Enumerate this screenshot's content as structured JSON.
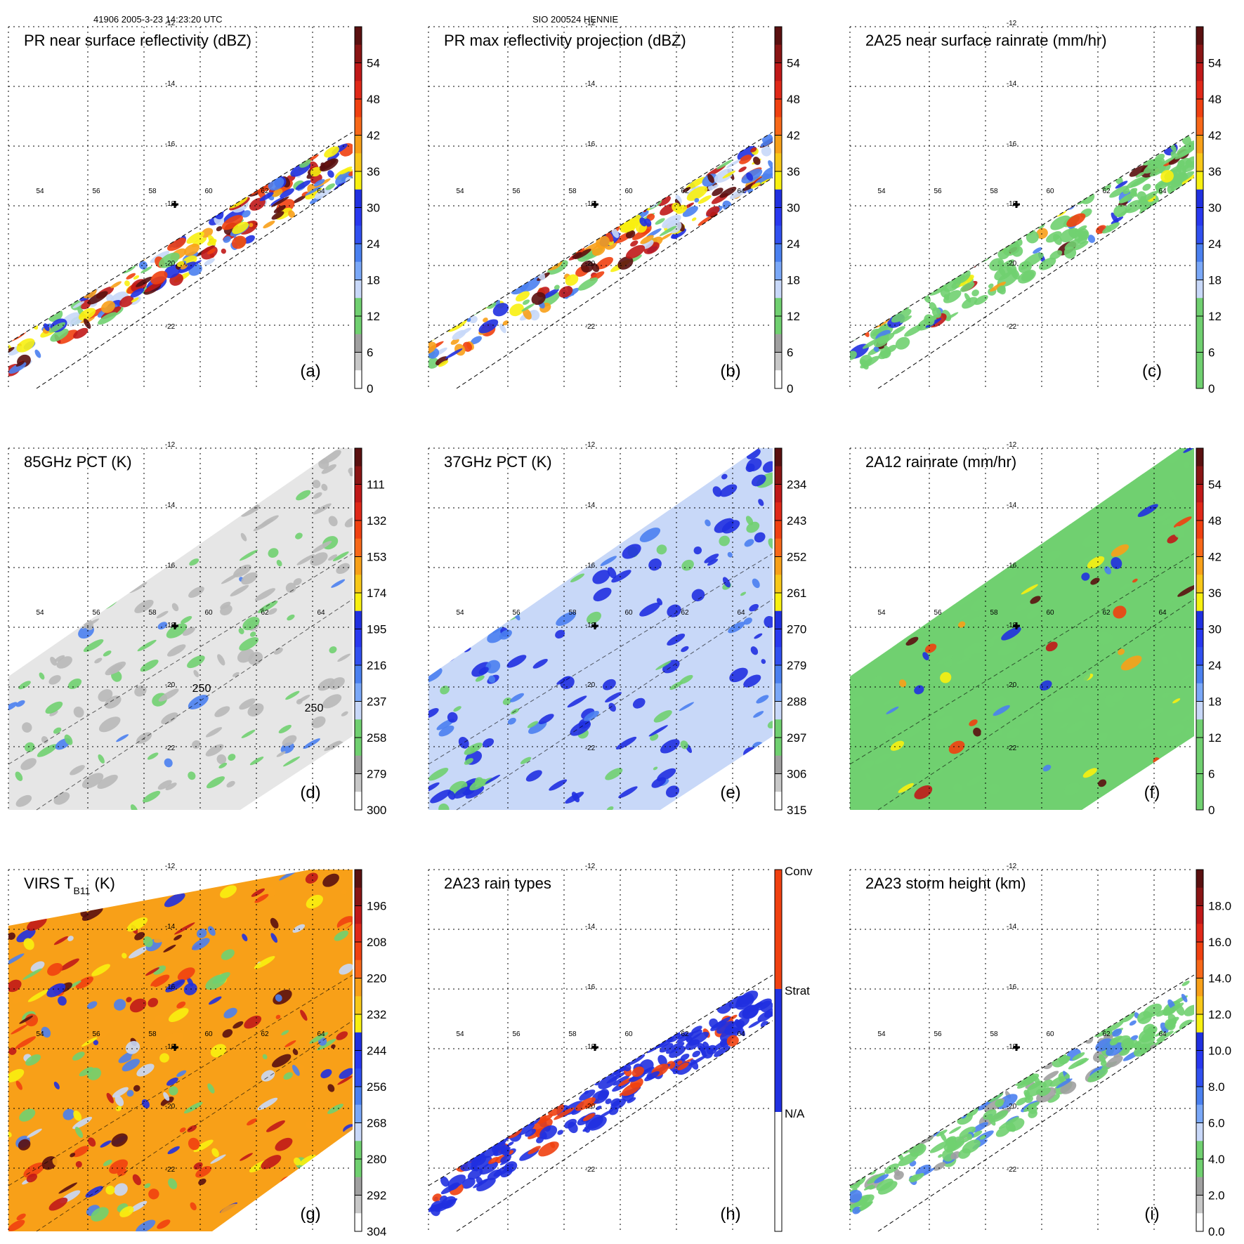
{
  "header": {
    "left": "41906 2005-3-23 14:23:20 UTC",
    "center": "SIO 200524 HENNIE"
  },
  "grid": {
    "lon_labels": [
      "54",
      "56",
      "58",
      "60",
      "62",
      "64"
    ],
    "lat_labels": [
      "-12",
      "-14",
      "-16",
      "-18",
      "-20",
      "-22"
    ]
  },
  "chart_data": [
    {
      "id": "a",
      "type": "heatmap",
      "title": "PR near surface reflectivity (dBZ)",
      "panel_label": "(a)",
      "swath": "PR",
      "ticks": [
        "54",
        "48",
        "42",
        "36",
        "30",
        "24",
        "18",
        "12",
        "6",
        "0"
      ],
      "colors": [
        "#5a1010",
        "#c01818",
        "#f04010",
        "#f8a018",
        "#f8f010",
        "#2030e0",
        "#4a80f0",
        "#c8d8f8",
        "#70d070",
        "#a0a0a0",
        "#d8d8d8",
        "#ffffff"
      ]
    },
    {
      "id": "b",
      "type": "heatmap",
      "title": "PR max reflectivity projection (dBZ)",
      "panel_label": "(b)",
      "swath": "PR",
      "ticks": [
        "54",
        "48",
        "42",
        "36",
        "30",
        "24",
        "18",
        "12",
        "6",
        "0"
      ],
      "colors": [
        "#5a1010",
        "#c01818",
        "#f04010",
        "#f8a018",
        "#f8f010",
        "#2030e0",
        "#4a80f0",
        "#c8d8f8",
        "#70d070",
        "#a0a0a0",
        "#d8d8d8",
        "#ffffff"
      ]
    },
    {
      "id": "c",
      "type": "heatmap",
      "title": "2A25 near surface rainrate (mm/hr)",
      "panel_label": "(c)",
      "swath": "PR",
      "ticks": [
        "54",
        "48",
        "42",
        "36",
        "30",
        "24",
        "18",
        "12",
        "6",
        "0"
      ],
      "colors": [
        "#5a1010",
        "#c01818",
        "#f04010",
        "#f8a018",
        "#f8f010",
        "#2030e0",
        "#4a80f0",
        "#c8d8f8",
        "#70d070",
        "#70d070"
      ]
    },
    {
      "id": "d",
      "type": "heatmap",
      "title": "85GHz PCT (K)",
      "panel_label": "(d)",
      "swath": "TMI",
      "ticks": [
        "111",
        "132",
        "153",
        "174",
        "195",
        "216",
        "237",
        "258",
        "279",
        "300"
      ],
      "contour_labels": [
        "250",
        "250"
      ],
      "colors": [
        "#5a1010",
        "#c01818",
        "#f04010",
        "#f8a018",
        "#f8f010",
        "#2030e0",
        "#4a80f0",
        "#c8d8f8",
        "#70d070",
        "#a0a0a0",
        "#d8d8d8",
        "#ffffff"
      ]
    },
    {
      "id": "e",
      "type": "heatmap",
      "title": "37GHz PCT (K)",
      "panel_label": "(e)",
      "swath": "TMI",
      "ticks": [
        "234",
        "243",
        "252",
        "261",
        "270",
        "279",
        "288",
        "297",
        "306",
        "315"
      ],
      "colors": [
        "#5a1010",
        "#c01818",
        "#f04010",
        "#f8a018",
        "#f8f010",
        "#2030e0",
        "#4a80f0",
        "#c8d8f8",
        "#70d070",
        "#a0a0a0",
        "#d8d8d8",
        "#ffffff"
      ]
    },
    {
      "id": "f",
      "type": "heatmap",
      "title": "2A12 rainrate (mm/hr)",
      "panel_label": "(f)",
      "swath": "TMI",
      "ticks": [
        "54",
        "48",
        "42",
        "36",
        "30",
        "24",
        "18",
        "12",
        "6",
        "0"
      ],
      "colors": [
        "#5a1010",
        "#c01818",
        "#f04010",
        "#f8a018",
        "#f8f010",
        "#2030e0",
        "#4a80f0",
        "#c8d8f8",
        "#70d070",
        "#70d070"
      ]
    },
    {
      "id": "g",
      "type": "heatmap",
      "title": "VIRS T",
      "title_sub": "B11",
      "title_suffix": " (K)",
      "panel_label": "(g)",
      "swath": "VIRS",
      "ticks": [
        "196",
        "208",
        "220",
        "232",
        "244",
        "256",
        "268",
        "280",
        "292",
        "304"
      ],
      "colors": [
        "#5a1010",
        "#c01818",
        "#f04010",
        "#f8a018",
        "#f8f010",
        "#2030e0",
        "#4a80f0",
        "#c8d8f8",
        "#70d070",
        "#a0a0a0",
        "#d8d8d8",
        "#ffffff"
      ]
    },
    {
      "id": "h",
      "type": "heatmap",
      "title": "2A23 rain types",
      "panel_label": "(h)",
      "swath": "PR",
      "ticks": [
        "Conv",
        "Strat",
        "N/A"
      ],
      "colors": [
        "#f04010",
        "#2030e0",
        "#ffffff"
      ]
    },
    {
      "id": "i",
      "type": "heatmap",
      "title": "2A23 storm height (km)",
      "panel_label": "(i)",
      "swath": "PR",
      "ticks": [
        "18.0",
        "16.0",
        "14.0",
        "12.0",
        "10.0",
        "8.0",
        "6.0",
        "4.0",
        "2.0",
        "0.0"
      ],
      "colors": [
        "#5a1010",
        "#c01818",
        "#f04010",
        "#f8a018",
        "#f8f010",
        "#2030e0",
        "#4a80f0",
        "#c8d8f8",
        "#70d070",
        "#a0a0a0",
        "#d8d8d8",
        "#ffffff"
      ]
    }
  ]
}
